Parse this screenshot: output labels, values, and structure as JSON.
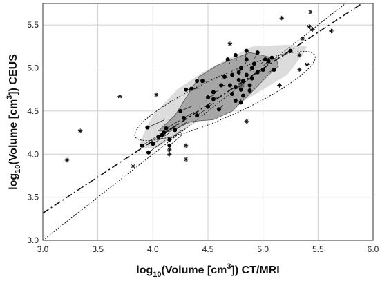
{
  "chart_data": {
    "type": "scatter",
    "xlabel": {
      "pre": "log",
      "sub": "10",
      "mid": "(Volume [cm",
      "sup": "3",
      "post": "]) CT/MRI"
    },
    "ylabel": {
      "pre": "log",
      "sub": "10",
      "mid": "(Volume [cm",
      "sup": "3",
      "post": "]) CEUS"
    },
    "xlim": [
      3.0,
      6.0
    ],
    "ylim": [
      3.0,
      5.75
    ],
    "xticks": [
      3.0,
      3.5,
      4.0,
      4.5,
      5.0,
      5.5,
      6.0
    ],
    "yticks": [
      3.0,
      3.5,
      4.0,
      4.5,
      5.0,
      5.5
    ],
    "grid": true,
    "colors": {
      "grid": "#cfcfcf",
      "outer_hull": "#dcdcdc",
      "bag": "#a6a6a6",
      "depth_median": "#6e6e6e",
      "points": "#000000"
    },
    "identity_line": {
      "slope": 1.0,
      "intercept": 0.0,
      "style": "dotted"
    },
    "regression_line": {
      "slope": 0.84,
      "intercept": 0.795,
      "style": "dash-dot"
    },
    "fence_ellipse": {
      "center": [
        4.655,
        4.675
      ],
      "angle_deg": 30.6,
      "semi_major": 0.944,
      "semi_minor": 0.222,
      "style": "dotted"
    },
    "outer_hull": [
      [
        4.05,
        4.08
      ],
      [
        4.45,
        4.42
      ],
      [
        4.7,
        4.52
      ],
      [
        5.0,
        4.75
      ],
      [
        5.22,
        4.92
      ],
      [
        5.36,
        5.15
      ],
      [
        5.4,
        5.25
      ],
      [
        5.22,
        5.27
      ],
      [
        4.9,
        5.25
      ],
      [
        4.7,
        5.12
      ],
      [
        4.45,
        4.95
      ],
      [
        4.22,
        4.75
      ],
      [
        4.0,
        4.45
      ],
      [
        3.92,
        4.25
      ],
      [
        3.88,
        4.12
      ],
      [
        3.92,
        4.06
      ]
    ],
    "bag": [
      [
        4.15,
        4.26
      ],
      [
        4.35,
        4.38
      ],
      [
        4.55,
        4.4
      ],
      [
        4.72,
        4.5
      ],
      [
        4.92,
        4.75
      ],
      [
        5.05,
        4.92
      ],
      [
        5.14,
        5.02
      ],
      [
        5.12,
        5.11
      ],
      [
        4.88,
        5.18
      ],
      [
        4.58,
        5.03
      ],
      [
        4.42,
        4.9
      ],
      [
        4.2,
        4.45
      ],
      [
        4.05,
        4.27
      ]
    ],
    "depth_median": [
      4.8,
      4.8
    ],
    "points": [
      [
        3.9,
        4.1
      ],
      [
        3.95,
        4.31
      ],
      [
        3.96,
        4.02
      ],
      [
        4.0,
        4.12
      ],
      [
        4.05,
        4.2
      ],
      [
        4.08,
        4.22
      ],
      [
        4.1,
        4.25
      ],
      [
        4.12,
        4.3
      ],
      [
        4.15,
        4.1
      ],
      [
        4.15,
        4.17
      ],
      [
        4.2,
        4.28
      ],
      [
        4.25,
        4.5
      ],
      [
        4.28,
        4.42
      ],
      [
        4.3,
        4.75
      ],
      [
        4.35,
        4.76
      ],
      [
        4.4,
        4.85
      ],
      [
        4.4,
        4.45
      ],
      [
        4.45,
        4.85
      ],
      [
        4.5,
        4.55
      ],
      [
        4.5,
        4.66
      ],
      [
        4.55,
        4.64
      ],
      [
        4.55,
        4.72
      ],
      [
        4.6,
        4.52
      ],
      [
        4.62,
        4.8
      ],
      [
        4.65,
        4.9
      ],
      [
        4.68,
        5.1
      ],
      [
        4.7,
        4.8
      ],
      [
        4.72,
        4.92
      ],
      [
        4.72,
        4.7
      ],
      [
        4.75,
        4.62
      ],
      [
        4.75,
        4.78
      ],
      [
        4.75,
        5.15
      ],
      [
        4.78,
        4.86
      ],
      [
        4.78,
        4.95
      ],
      [
        4.8,
        4.6
      ],
      [
        4.8,
        4.75
      ],
      [
        4.8,
        5.0
      ],
      [
        4.82,
        4.85
      ],
      [
        4.82,
        4.68
      ],
      [
        4.85,
        4.92
      ],
      [
        4.85,
        5.1
      ],
      [
        4.85,
        5.2
      ],
      [
        4.88,
        4.74
      ],
      [
        4.88,
        4.8
      ],
      [
        4.9,
        5.0
      ],
      [
        4.9,
        4.88
      ],
      [
        4.92,
        5.05
      ],
      [
        4.95,
        4.95
      ],
      [
        4.95,
        5.18
      ],
      [
        5.0,
        4.98
      ],
      [
        5.02,
        5.1
      ],
      [
        5.05,
        5.08
      ],
      [
        5.08,
        5.12
      ],
      [
        5.1,
        4.98
      ],
      [
        5.25,
        5.2
      ]
    ],
    "outliers": [
      [
        3.22,
        3.93
      ],
      [
        3.34,
        4.27
      ],
      [
        3.7,
        4.67
      ],
      [
        3.82,
        3.86
      ],
      [
        4.03,
        4.69
      ],
      [
        4.15,
        4.0
      ],
      [
        4.15,
        4.05
      ],
      [
        4.3,
        4.1
      ],
      [
        4.3,
        3.94
      ],
      [
        4.7,
        5.28
      ],
      [
        4.85,
        4.38
      ],
      [
        5.15,
        4.8
      ],
      [
        5.17,
        5.58
      ],
      [
        5.33,
        5.15
      ],
      [
        5.33,
        4.98
      ],
      [
        5.36,
        5.34
      ],
      [
        5.4,
        5.04
      ],
      [
        5.42,
        5.48
      ],
      [
        5.43,
        5.65
      ],
      [
        5.45,
        5.45
      ],
      [
        5.62,
        5.43
      ]
    ]
  }
}
